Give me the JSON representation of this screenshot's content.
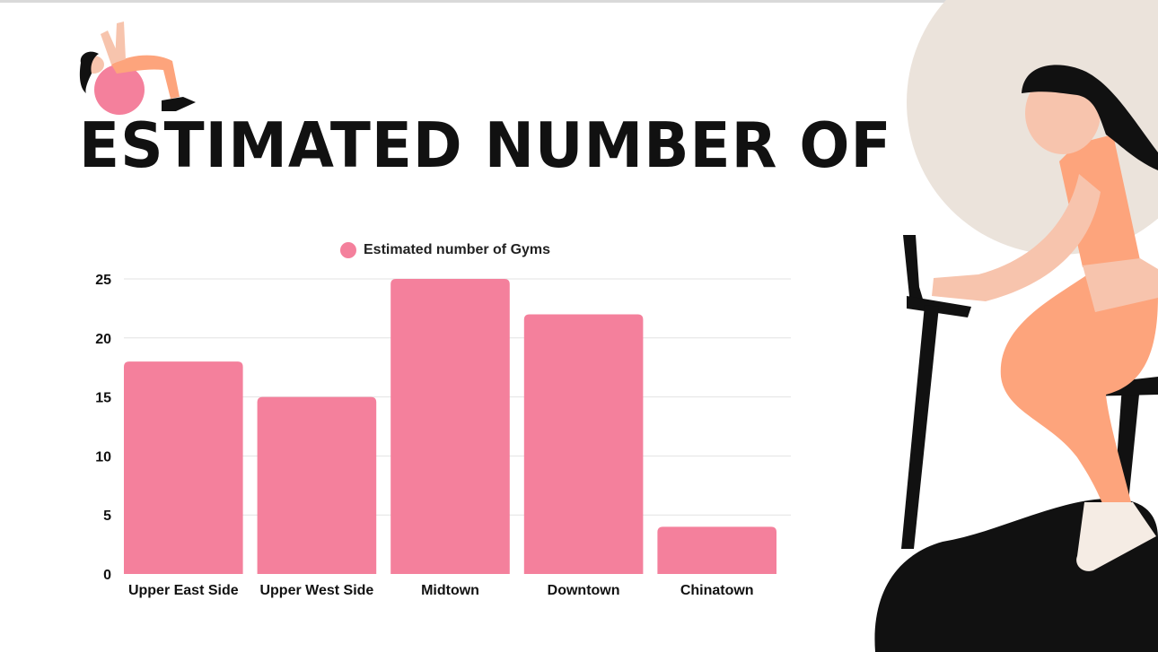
{
  "title": "Estimated number of Gyms",
  "colors": {
    "bar": "#f4809c",
    "grid": "#e3e3e3",
    "circle": "#ebe3db",
    "skin": "#f7c4ad",
    "outfit": "#fda47c",
    "black": "#111111"
  },
  "chart_data": {
    "type": "bar",
    "title": "",
    "xlabel": "",
    "ylabel": "",
    "categories": [
      "Upper East Side",
      "Upper West Side",
      "Midtown",
      "Downtown",
      "Chinatown"
    ],
    "series": [
      {
        "name": "Estimated number of Gyms",
        "values": [
          18,
          15,
          25,
          22,
          4
        ]
      }
    ],
    "ylim": [
      0,
      25
    ],
    "yticks": [
      0,
      5,
      10,
      15,
      20,
      25
    ],
    "grid": true,
    "legend_position": "top-center"
  }
}
